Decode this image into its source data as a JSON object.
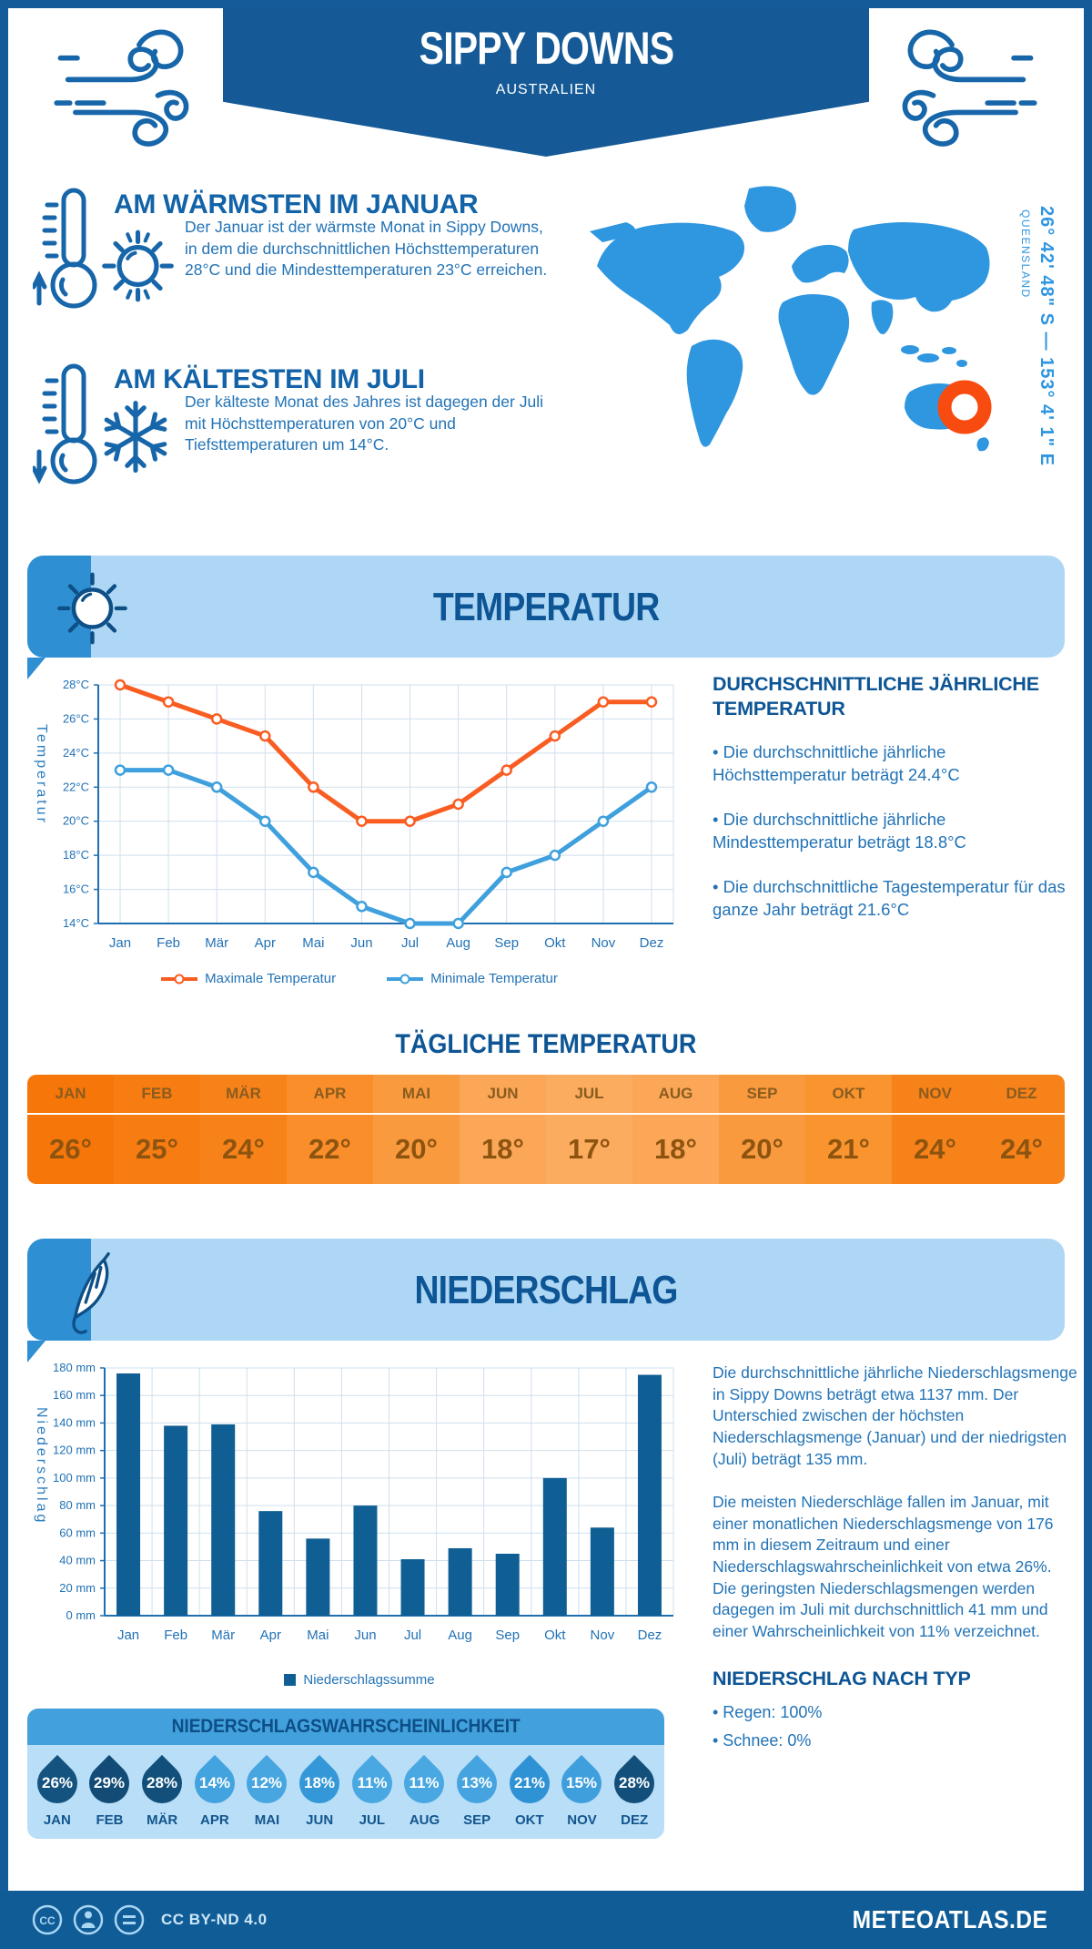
{
  "header": {
    "title": "SIPPY DOWNS",
    "subtitle": "AUSTRALIEN"
  },
  "location": {
    "coordinates": "26° 42' 48\" S — 153° 4' 1\" E",
    "region": "QUEENSLAND"
  },
  "highlights": [
    {
      "title": "AM WÄRMSTEN IM JANUAR",
      "text": "Der Januar ist der wärmste Monat in Sippy Downs, in dem die durchschnittlichen Höchsttemperaturen 28°C und die Mindesttemperaturen 23°C erreichen."
    },
    {
      "title": "AM KÄLTESTEN IM JULI",
      "text": "Der kälteste Monat des Jahres ist dagegen der Juli mit Höchsttemperaturen von 20°C und Tiefsttemperaturen um 14°C."
    }
  ],
  "temperature_section": {
    "title": "TEMPERATUR",
    "stats": {
      "title": "DURCHSCHNITTLICHE JÄHRLICHE TEMPERATUR",
      "bullets": [
        "• Die durchschnittliche jährliche Höchsttemperatur beträgt 24.4°C",
        "• Die durchschnittliche jährliche Mindesttemperatur beträgt 18.8°C",
        "• Die durchschnittliche Tagestemperatur für das ganze Jahr beträgt 21.6°C"
      ]
    },
    "daily": {
      "title": "TÄGLICHE TEMPERATUR",
      "months": [
        "JAN",
        "FEB",
        "MÄR",
        "APR",
        "MAI",
        "JUN",
        "JUL",
        "AUG",
        "SEP",
        "OKT",
        "NOV",
        "DEZ"
      ],
      "values": [
        "26°",
        "25°",
        "24°",
        "22°",
        "20°",
        "18°",
        "17°",
        "18°",
        "20°",
        "21°",
        "24°",
        "24°"
      ],
      "colors": [
        "#f7760a",
        "#f77c12",
        "#f8821a",
        "#f98e2b",
        "#fa9a3f",
        "#fba757",
        "#fbac5f",
        "#fba757",
        "#fa9a3f",
        "#f9942f",
        "#f8821a",
        "#f8821a"
      ]
    }
  },
  "precipitation_section": {
    "title": "NIEDERSCHLAG",
    "text1": "Die durchschnittliche jährliche Niederschlagsmenge in Sippy Downs beträgt etwa 1137 mm. Der Unterschied zwischen der höchsten Niederschlagsmenge (Januar) und der niedrigsten (Juli) beträgt 135 mm.",
    "text2": "Die meisten Niederschläge fallen im Januar, mit einer monatlichen Niederschlagsmenge von 176 mm in diesem Zeitraum und einer Niederschlagswahrscheinlichkeit von etwa 26%. Die geringsten Niederschlagsmengen werden dagegen im Juli mit durchschnittlich 41 mm und einer Wahrscheinlichkeit von 11% verzeichnet.",
    "type": {
      "title": "NIEDERSCHLAG NACH TYP",
      "items": [
        "• Regen: 100%",
        "• Schnee: 0%"
      ]
    },
    "probability": {
      "title": "NIEDERSCHLAGSWAHRSCHEINLICHKEIT",
      "months": [
        "JAN",
        "FEB",
        "MÄR",
        "APR",
        "MAI",
        "JUN",
        "JUL",
        "AUG",
        "SEP",
        "OKT",
        "NOV",
        "DEZ"
      ],
      "values": [
        "26%",
        "29%",
        "28%",
        "14%",
        "12%",
        "18%",
        "11%",
        "11%",
        "13%",
        "21%",
        "15%",
        "28%"
      ],
      "colors": [
        "#14537f",
        "#114b76",
        "#12507b",
        "#43a3df",
        "#47a5e0",
        "#3498d8",
        "#49a7e1",
        "#49a7e1",
        "#45a4df",
        "#2e92d4",
        "#3f9fdc",
        "#12507b"
      ]
    }
  },
  "footer": {
    "license": "CC BY-ND 4.0",
    "site": "METEOATLAS.DE"
  },
  "colors": {
    "banner": "#155a96",
    "heading": "#1263a8",
    "body": "#2273b6",
    "bright": "#2f96e0",
    "light_banner": "#aed7f6",
    "icon_square": "#2e8fd2",
    "marker": "#f84b10",
    "max_line": "#f95d22",
    "min_line": "#3fa0dd",
    "bar": "#0f5e94",
    "footer_bg": "#0f5c96"
  },
  "chart_data": [
    {
      "type": "line",
      "categories": [
        "Jan",
        "Feb",
        "Mär",
        "Apr",
        "Mai",
        "Jun",
        "Jul",
        "Aug",
        "Sep",
        "Okt",
        "Nov",
        "Dez"
      ],
      "ylabel": "Temperatur",
      "ylim": [
        14,
        28
      ],
      "ytick_step": 2,
      "ytick_suffix": "°C",
      "grid": true,
      "legend_position": "bottom",
      "series": [
        {
          "name": "Maximale Temperatur",
          "color": "#f95d22",
          "values": [
            28,
            27,
            26,
            25,
            22,
            20,
            20,
            21,
            23,
            25,
            27,
            27
          ]
        },
        {
          "name": "Minimale Temperatur",
          "color": "#3fa0dd",
          "values": [
            23,
            23,
            22,
            20,
            17,
            15,
            14,
            14,
            17,
            18,
            20,
            22
          ]
        }
      ]
    },
    {
      "type": "bar",
      "categories": [
        "Jan",
        "Feb",
        "Mär",
        "Apr",
        "Mai",
        "Jun",
        "Jul",
        "Aug",
        "Sep",
        "Okt",
        "Nov",
        "Dez"
      ],
      "ylabel": "Niederschlag",
      "ylim": [
        0,
        180
      ],
      "ytick_step": 20,
      "ytick_suffix": " mm",
      "grid": true,
      "legend_position": "bottom",
      "series": [
        {
          "name": "Niederschlagssumme",
          "color": "#0f5e94",
          "values": [
            176,
            138,
            139,
            76,
            56,
            80,
            41,
            49,
            45,
            100,
            64,
            175
          ]
        }
      ]
    }
  ]
}
